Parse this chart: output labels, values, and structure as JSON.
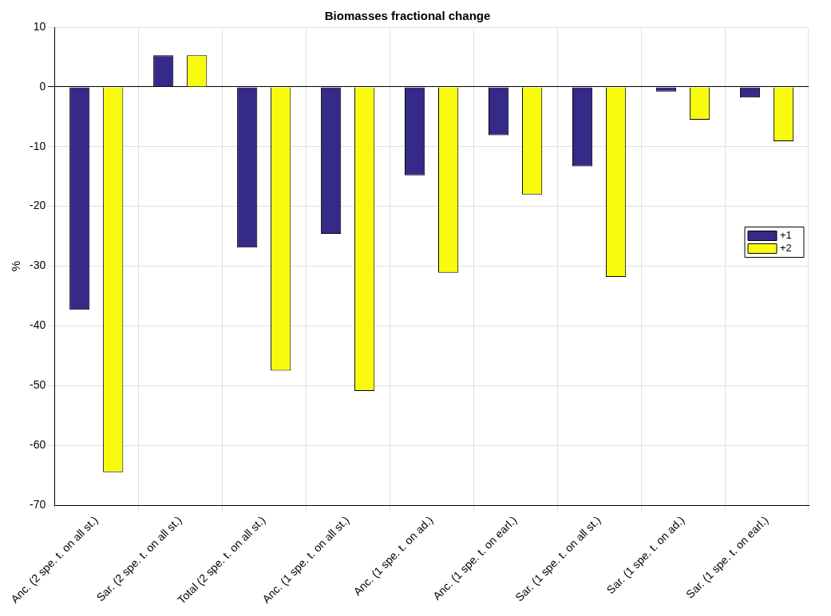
{
  "chart_data": {
    "type": "bar",
    "title": "Biomasses fractional change",
    "ylabel": "%",
    "categories": [
      "Anc. (2 spe. t. on all st.)",
      "Sar. (2 spe. t. on all st.)",
      "Total (2 spe. t. on all st.)",
      "Anc. (1 spe. t. on all st.)",
      "Anc. (1 spe. t. on ad.)",
      "Anc. (1 spe. t. on earl.)",
      "Sar. (1 spe. t. on all st.)",
      "Sar. (1 spe. t. on ad.)",
      "Sar. (1 spe. t. on earl.)"
    ],
    "series": [
      {
        "name": "+1",
        "color": "#352a87",
        "values": [
          -37.3,
          5.3,
          -26.9,
          -24.6,
          -14.8,
          -8.1,
          -13.3,
          -0.8,
          -1.8
        ]
      },
      {
        "name": "+2",
        "color": "#f9fb0e",
        "values": [
          -64.5,
          5.3,
          -47.5,
          -50.9,
          -31.1,
          -18.0,
          -31.8,
          -5.5,
          -9.1
        ]
      }
    ],
    "ylim": [
      -70,
      10
    ],
    "yticks": [
      10,
      0,
      -10,
      -20,
      -30,
      -40,
      -50,
      -60,
      -70
    ],
    "grid": true,
    "legend": "right"
  }
}
